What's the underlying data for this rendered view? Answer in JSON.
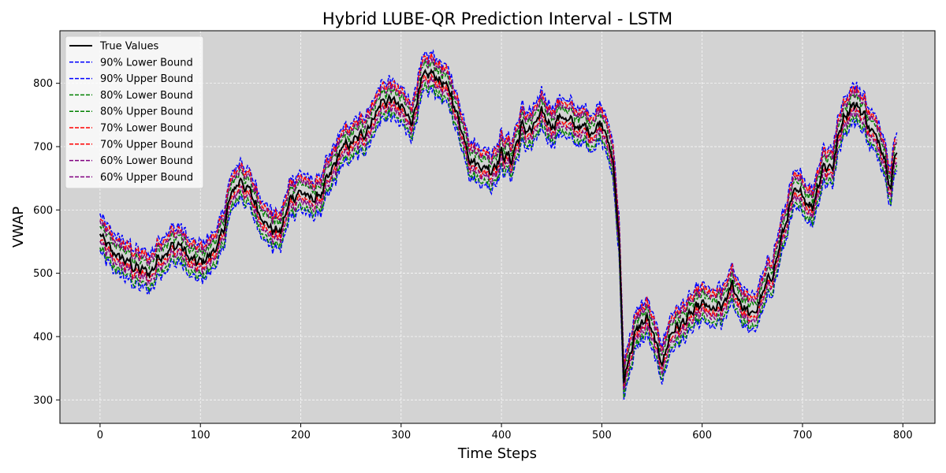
{
  "chart_data": {
    "type": "line",
    "title": "Hybrid LUBE-QR Prediction Interval - LSTM",
    "xlabel": "Time Steps",
    "ylabel": "VWAP",
    "xlim": [
      -40,
      832
    ],
    "ylim": [
      263,
      883
    ],
    "xticks": [
      0,
      100,
      200,
      300,
      400,
      500,
      600,
      700,
      800
    ],
    "yticks": [
      300,
      400,
      500,
      600,
      700,
      800
    ],
    "grid": true,
    "legend_position": "upper-left",
    "background_color": "#d3d3d3",
    "true_values_keypoints": [
      [
        0,
        560
      ],
      [
        10,
        535
      ],
      [
        20,
        525
      ],
      [
        30,
        515
      ],
      [
        40,
        505
      ],
      [
        50,
        500
      ],
      [
        60,
        530
      ],
      [
        70,
        540
      ],
      [
        80,
        545
      ],
      [
        90,
        520
      ],
      [
        100,
        515
      ],
      [
        110,
        530
      ],
      [
        120,
        550
      ],
      [
        130,
        620
      ],
      [
        140,
        650
      ],
      [
        150,
        625
      ],
      [
        160,
        595
      ],
      [
        170,
        570
      ],
      [
        180,
        565
      ],
      [
        190,
        620
      ],
      [
        200,
        630
      ],
      [
        210,
        615
      ],
      [
        220,
        625
      ],
      [
        230,
        655
      ],
      [
        240,
        695
      ],
      [
        250,
        705
      ],
      [
        260,
        715
      ],
      [
        270,
        740
      ],
      [
        280,
        770
      ],
      [
        290,
        775
      ],
      [
        300,
        760
      ],
      [
        310,
        740
      ],
      [
        320,
        800
      ],
      [
        330,
        815
      ],
      [
        340,
        805
      ],
      [
        350,
        780
      ],
      [
        360,
        730
      ],
      [
        370,
        680
      ],
      [
        380,
        670
      ],
      [
        390,
        665
      ],
      [
        400,
        690
      ],
      [
        410,
        680
      ],
      [
        420,
        730
      ],
      [
        430,
        725
      ],
      [
        440,
        750
      ],
      [
        450,
        735
      ],
      [
        460,
        750
      ],
      [
        470,
        735
      ],
      [
        480,
        730
      ],
      [
        490,
        725
      ],
      [
        500,
        740
      ],
      [
        505,
        725
      ],
      [
        512,
        660
      ],
      [
        517,
        560
      ],
      [
        522,
        330
      ],
      [
        527,
        370
      ],
      [
        535,
        410
      ],
      [
        545,
        430
      ],
      [
        555,
        380
      ],
      [
        560,
        360
      ],
      [
        570,
        410
      ],
      [
        580,
        420
      ],
      [
        590,
        435
      ],
      [
        600,
        450
      ],
      [
        610,
        440
      ],
      [
        620,
        445
      ],
      [
        630,
        480
      ],
      [
        640,
        450
      ],
      [
        650,
        430
      ],
      [
        660,
        465
      ],
      [
        670,
        500
      ],
      [
        680,
        560
      ],
      [
        690,
        620
      ],
      [
        700,
        625
      ],
      [
        710,
        605
      ],
      [
        720,
        670
      ],
      [
        730,
        670
      ],
      [
        740,
        745
      ],
      [
        750,
        770
      ],
      [
        760,
        755
      ],
      [
        770,
        720
      ],
      [
        780,
        700
      ],
      [
        788,
        640
      ],
      [
        794,
        700
      ]
    ],
    "series": [
      {
        "name": "True Values",
        "color": "#000000",
        "style": "solid",
        "offset": 0,
        "width": 2
      },
      {
        "name": "90% Lower Bound",
        "color": "#0000ff",
        "style": "dashed",
        "offset": -28,
        "width": 1.5
      },
      {
        "name": "90% Upper Bound",
        "color": "#0000ff",
        "style": "dashed",
        "offset": 30,
        "width": 1.5
      },
      {
        "name": "80% Lower Bound",
        "color": "#008000",
        "style": "dashed",
        "offset": -22,
        "width": 1.5
      },
      {
        "name": "80% Upper Bound",
        "color": "#008000",
        "style": "dashed",
        "offset": 14,
        "width": 1.5
      },
      {
        "name": "70% Lower Bound",
        "color": "#ff0000",
        "style": "dashed",
        "offset": -8,
        "width": 1.5
      },
      {
        "name": "70% Upper Bound",
        "color": "#ff0000",
        "style": "dashed",
        "offset": 24,
        "width": 1.5
      },
      {
        "name": "60% Lower Bound",
        "color": "#800080",
        "style": "dashed",
        "offset": -13,
        "width": 1.5
      },
      {
        "name": "60% Upper Bound",
        "color": "#800080",
        "style": "dashed",
        "offset": 19,
        "width": 1.5
      }
    ]
  }
}
